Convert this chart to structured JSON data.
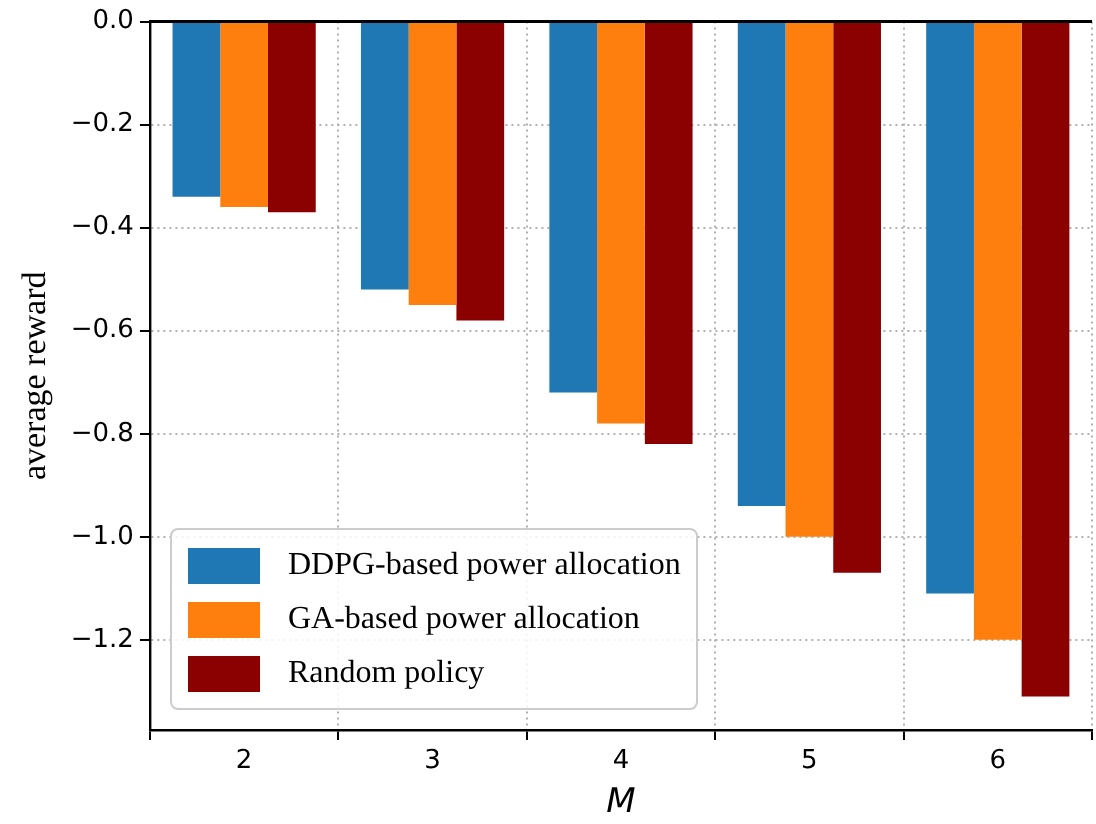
{
  "chart_data": {
    "type": "bar",
    "xlabel": "M",
    "ylabel": "average reward",
    "categories": [
      "2",
      "3",
      "4",
      "5",
      "6"
    ],
    "series": [
      {
        "name": "DDPG-based power allocation",
        "color": "#1f77b4",
        "values": [
          -0.34,
          -0.52,
          -0.72,
          -0.94,
          -1.11
        ]
      },
      {
        "name": "GA-based power allocation",
        "color": "#ff7f0e",
        "values": [
          -0.36,
          -0.55,
          -0.78,
          -1.0,
          -1.2
        ]
      },
      {
        "name": "Random policy",
        "color": "#8b0000",
        "values": [
          -0.37,
          -0.58,
          -0.82,
          -1.07,
          -1.31
        ]
      }
    ],
    "ylim": [
      -1.375,
      0
    ],
    "yticks": [
      {
        "value": 0,
        "label": "0.0"
      },
      -0.2,
      -0.4,
      -0.6,
      -0.8,
      {
        "value": -1,
        "label": "−1.0"
      },
      -1.2
    ],
    "ref_lines": [
      {
        "axis": "y",
        "value": 0,
        "color": "#000000"
      }
    ],
    "grid": true,
    "legend": "bottom left"
  }
}
